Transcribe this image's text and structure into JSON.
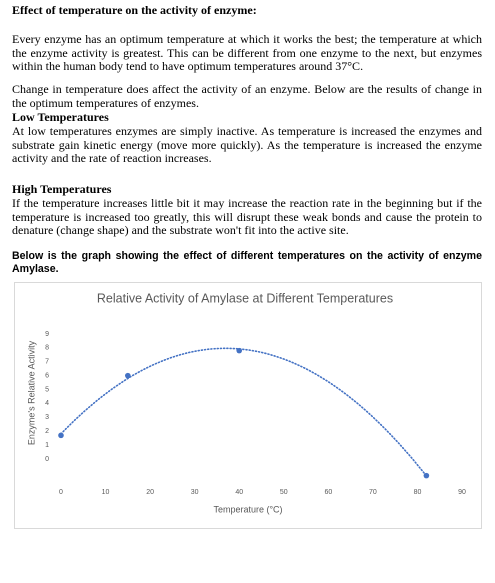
{
  "doc": {
    "title": "Effect of temperature on the activity of enzyme:",
    "intro": [
      "Every enzyme has an optimum temperature at which it works the best; the temperature at which the enzyme activity is greatest. This can be different from one enzyme to the next, but enzymes within the human body tend to have optimum temperatures around 37°C.",
      "Change in temperature does affect the activity of an enzyme. Below are the results of change in the optimum temperatures of enzymes."
    ],
    "sections": [
      {
        "heading": "Low Temperatures",
        "text": "At low temperatures enzymes are simply inactive. As temperature is increased the enzymes and substrate gain kinetic energy (move more quickly). As the temperature is increased the enzyme activity and the rate of reaction increases."
      },
      {
        "heading": "High Temperatures",
        "text": "If the temperature increases little bit it may increase the reaction rate in the beginning but if the temperature is increased too greatly, this will disrupt these weak bonds and cause the protein to denature (change shape) and the substrate won't fit into the active site."
      }
    ],
    "graph_caption": "Below is the graph showing the effect of different temperatures on the activity of enzyme Amylase."
  },
  "chart_data": {
    "type": "scatter",
    "title": "Relative Activity of Amylase at Different Temperatures",
    "x_label": "Temperature (°C)",
    "y_label": "Enzyme's Relative Activity",
    "x": [
      0,
      15,
      40,
      82
    ],
    "values": [
      1.7,
      6,
      7.8,
      -1.2
    ],
    "color": "#4472c4",
    "trendline": {
      "type": "polynomial",
      "order": 2
    },
    "xlim": [
      -5,
      93
    ],
    "xticks": [
      0,
      10,
      20,
      30,
      40,
      50,
      60,
      70,
      80,
      90
    ],
    "ylim": [
      -1.5,
      9.5
    ],
    "yticks": [
      0,
      1,
      2,
      3,
      4,
      5,
      6,
      7,
      8,
      9
    ],
    "grid": false
  }
}
